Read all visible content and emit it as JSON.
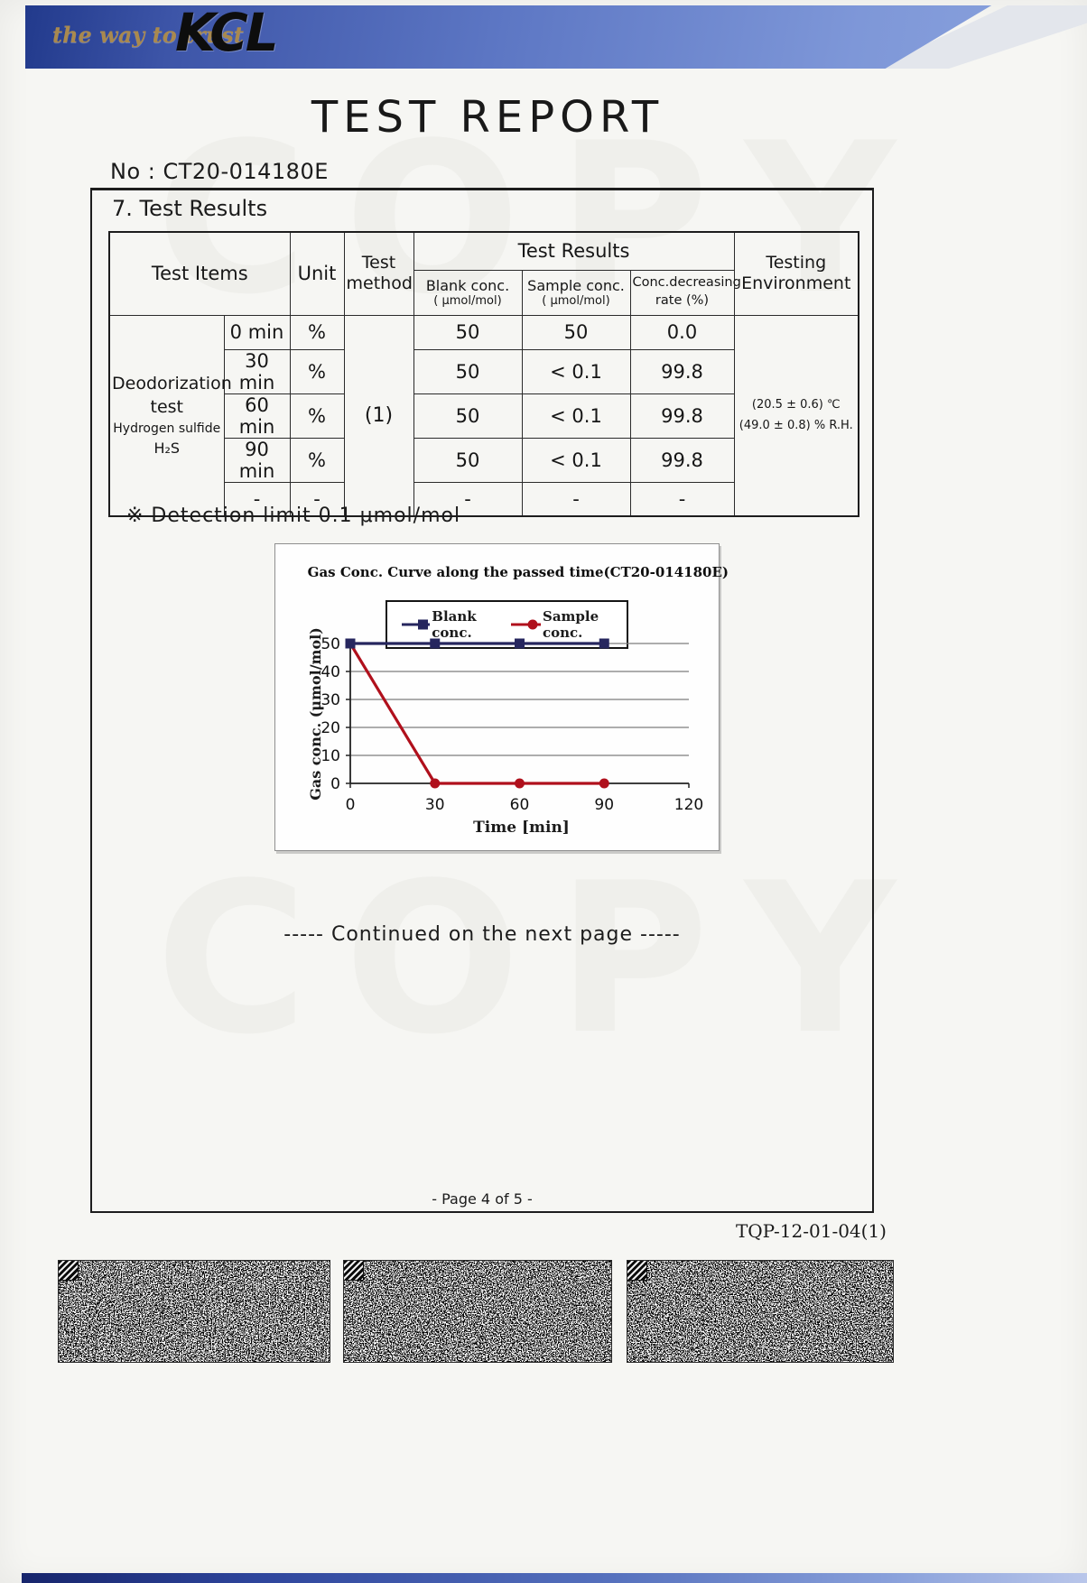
{
  "brand": {
    "tagline": "the way to trust",
    "logo": "KCL"
  },
  "title": "TEST REPORT",
  "report_no": "No : CT20-014180E",
  "section_heading": "7. Test Results",
  "table": {
    "col_test_items": "Test Items",
    "col_unit": "Unit",
    "col_test_method_line1": "Test",
    "col_test_method_line2": "method",
    "col_test_results": "Test Results",
    "col_blank": "Blank conc.",
    "col_blank_sub": "( μmol/mol)",
    "col_sample": "Sample conc.",
    "col_sample_sub": "( μmol/mol)",
    "col_rate_line1": "Conc.decreasing",
    "col_rate_line2": "rate (%)",
    "col_env_line1": "Testing",
    "col_env_line2": "Environment",
    "item_line1": "Deodorization",
    "item_line2": "test",
    "item_line3": "Hydrogen sulfide",
    "item_line4": "H₂S",
    "test_method_value": "(1)",
    "rows": [
      {
        "time": "0 min",
        "unit": "%",
        "blank": "50",
        "sample": "50",
        "rate": "0.0"
      },
      {
        "time": "30 min",
        "unit": "%",
        "blank": "50",
        "sample": "< 0.1",
        "rate": "99.8"
      },
      {
        "time": "60 min",
        "unit": "%",
        "blank": "50",
        "sample": "< 0.1",
        "rate": "99.8"
      },
      {
        "time": "90 min",
        "unit": "%",
        "blank": "50",
        "sample": "< 0.1",
        "rate": "99.8"
      },
      {
        "time": "-",
        "unit": "-",
        "blank": "-",
        "sample": "-",
        "rate": "-"
      }
    ],
    "environment_line1": "(20.5 ± 0.6) ℃",
    "environment_line2": "(49.0 ± 0.8) % R.H."
  },
  "note": "※ Detection limit 0.1 μmol/mol",
  "chart_data": {
    "type": "line",
    "title": "Gas Conc. Curve along the passed time(CT20-014180E)",
    "xlabel": "Time [min]",
    "ylabel": "Gas conc. (μmol/mol)",
    "x": [
      0,
      30,
      60,
      90
    ],
    "series": [
      {
        "name": "Blank conc.",
        "values": [
          50,
          50,
          50,
          50
        ],
        "color": "#26265e",
        "marker": "square"
      },
      {
        "name": "Sample conc.",
        "values": [
          50,
          0,
          0,
          0
        ],
        "color": "#b0101c",
        "marker": "circle"
      }
    ],
    "xlim": [
      0,
      120
    ],
    "ylim": [
      0,
      50
    ],
    "xticks": [
      0,
      30,
      60,
      90,
      120
    ],
    "yticks": [
      0,
      10,
      20,
      30,
      40,
      50
    ],
    "grid": "horizontal",
    "legend_position": "top"
  },
  "continued_text": "----- Continued on the next page -----",
  "page_indicator": "- Page 4 of 5 -",
  "doc_code": "TQP-12-01-04(1)",
  "watermark_text": "COPY"
}
